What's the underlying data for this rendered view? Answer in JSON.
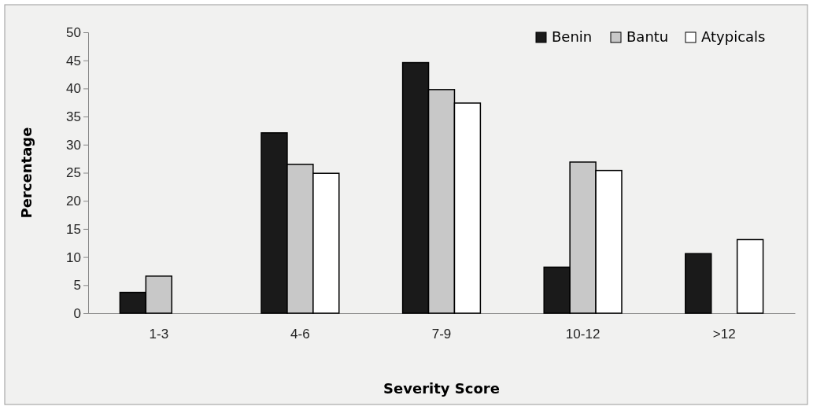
{
  "chart_data": {
    "type": "bar",
    "xlabel": "Severity Score",
    "ylabel": "Percentage",
    "categories": [
      "1-3",
      "4-6",
      "7-9",
      "10-12",
      ">12"
    ],
    "series": [
      {
        "name": "Benin",
        "color": "#1a1a1a",
        "values": [
          3.7,
          32.1,
          44.6,
          8.2,
          10.6
        ]
      },
      {
        "name": "Bantu",
        "color": "#c8c8c8",
        "values": [
          6.6,
          26.5,
          39.8,
          26.9,
          0
        ]
      },
      {
        "name": "Atypicals",
        "color": "#ffffff",
        "values": [
          0,
          24.9,
          37.4,
          25.4,
          13.1
        ]
      }
    ],
    "ylim": [
      0,
      50
    ],
    "yticks": [
      0,
      5,
      10,
      15,
      20,
      25,
      30,
      35,
      40,
      45,
      50
    ],
    "grid": false,
    "legend": "top right"
  }
}
